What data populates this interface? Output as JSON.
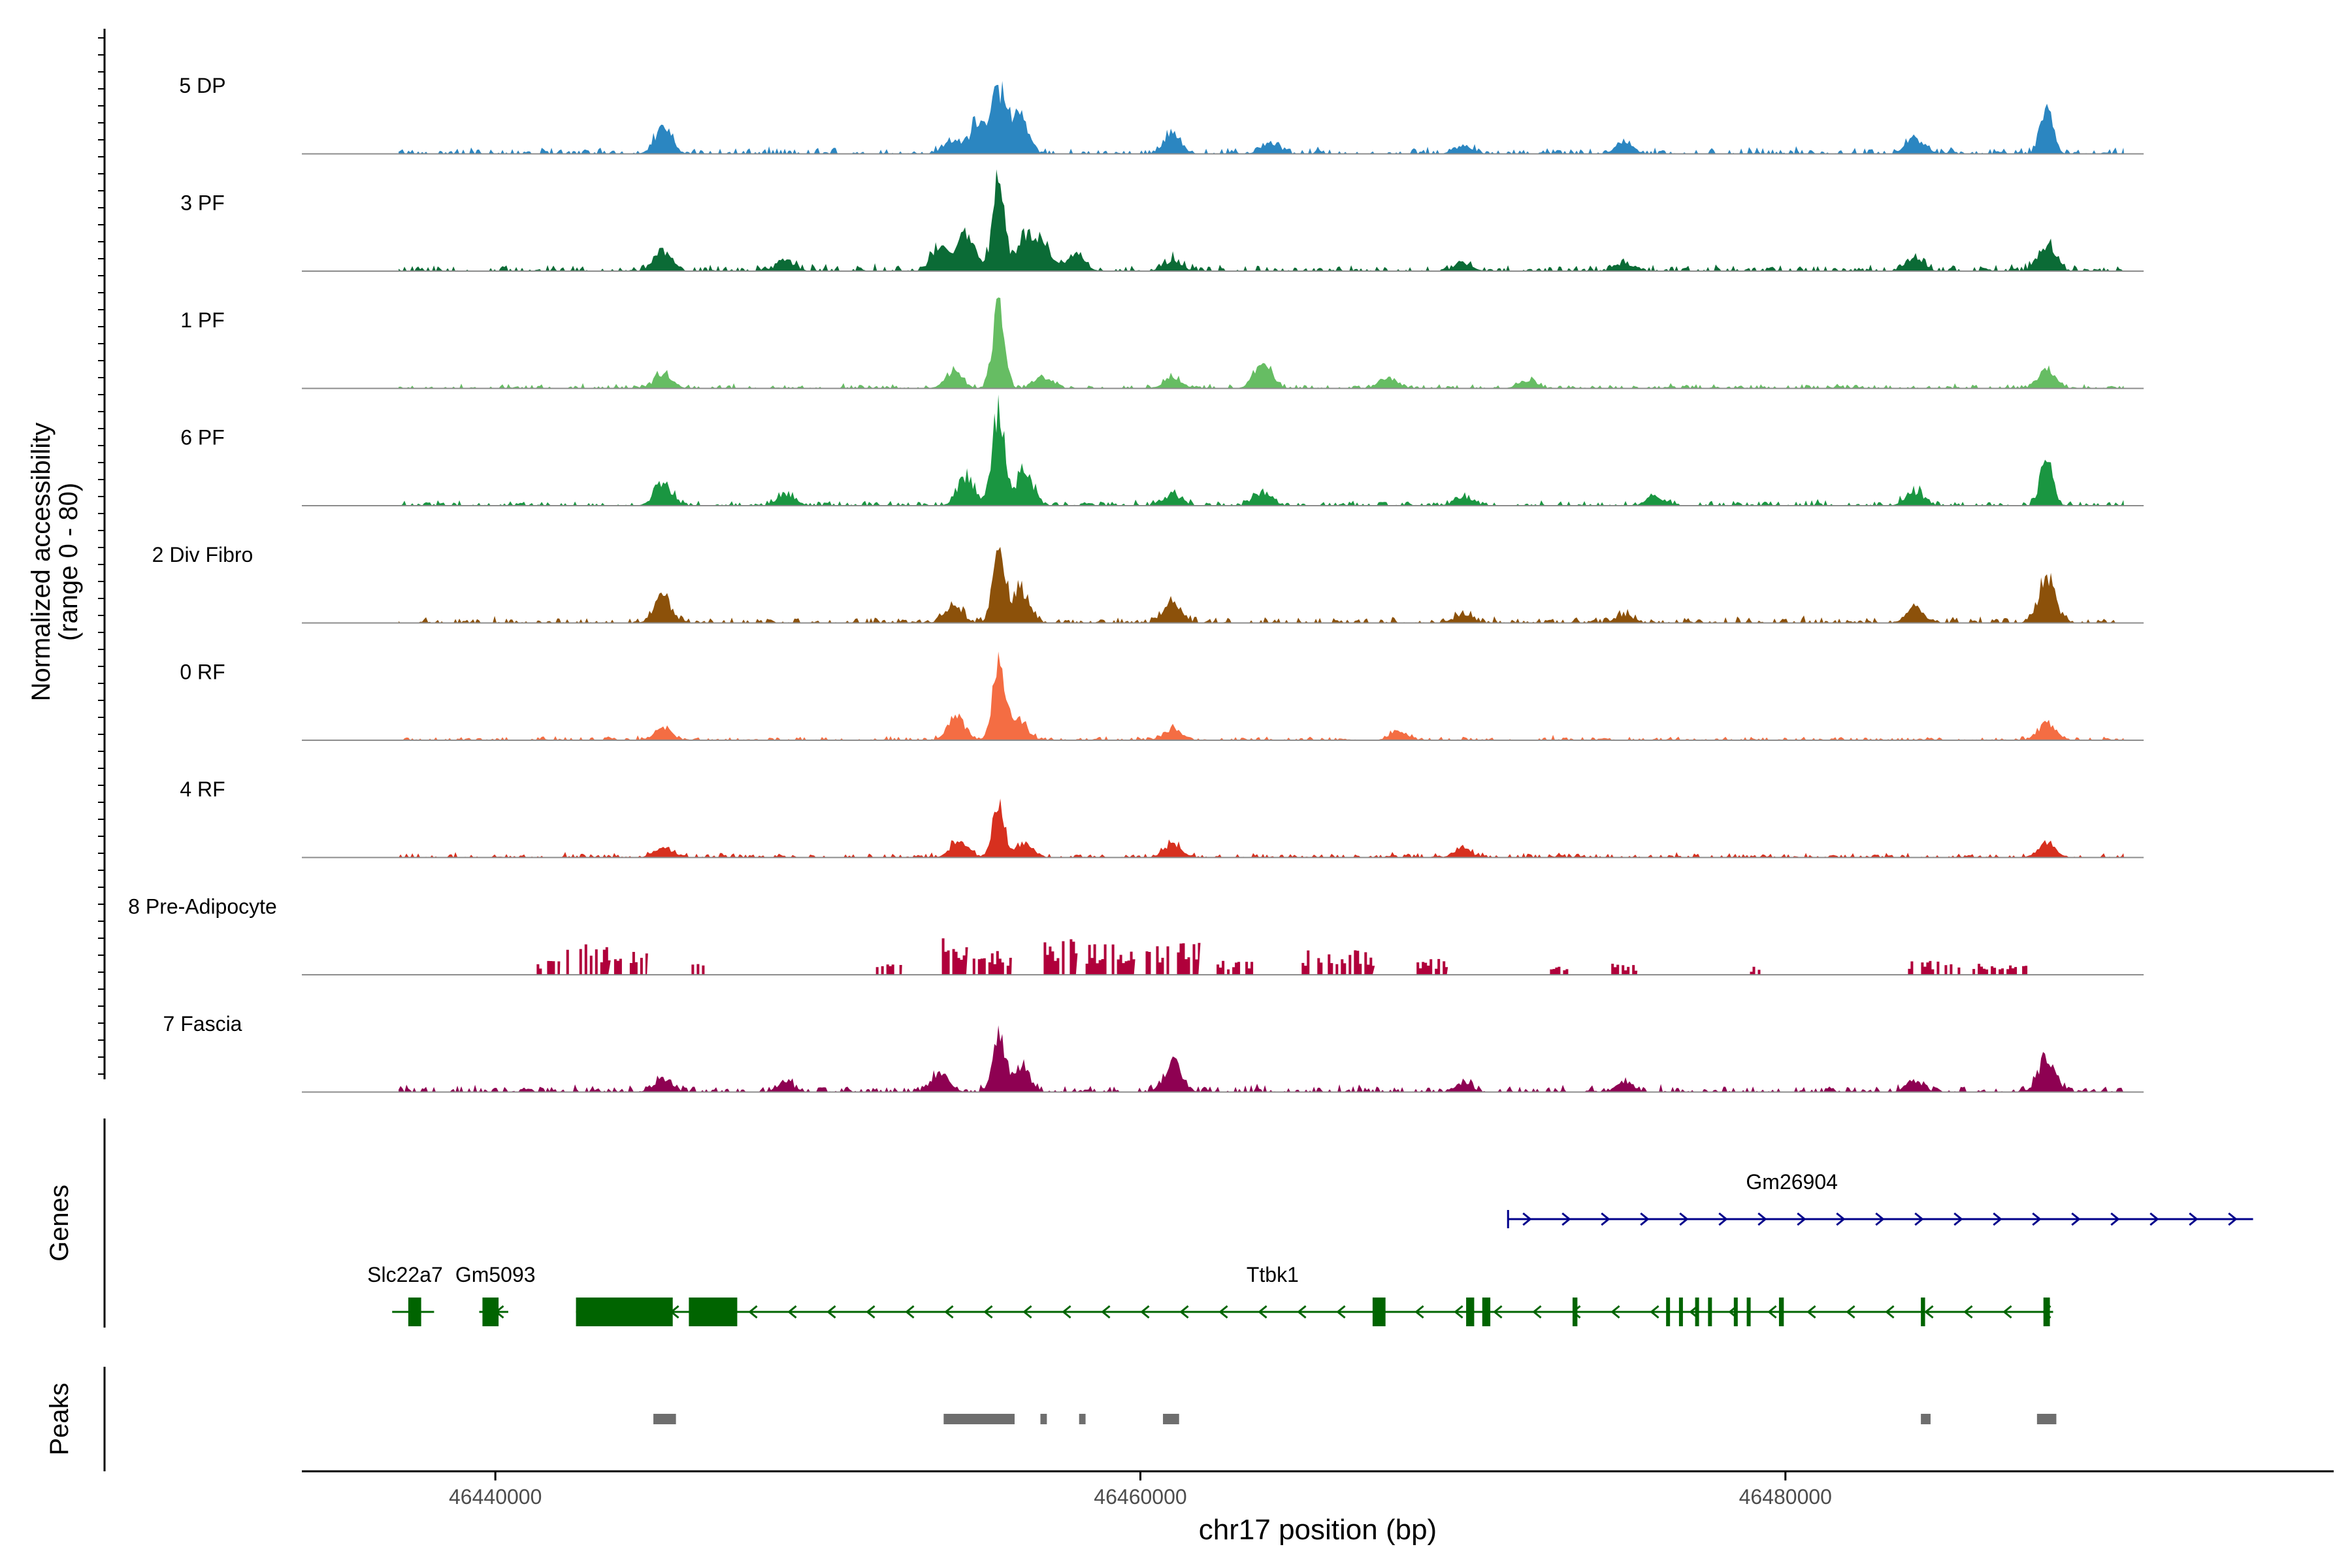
{
  "chart_data": {
    "type": "area",
    "title": "",
    "ylabel_line1": "Normalized accessibility",
    "ylabel_line2": "(range 0 - 80)",
    "xlabel": "chr17 position (bp)",
    "xlim": [
      46434000,
      46497000
    ],
    "ylim": [
      0,
      80
    ],
    "xticks": [
      {
        "value": 46440000,
        "label": "46440000"
      },
      {
        "value": 46460000,
        "label": "46460000"
      },
      {
        "value": 46480000,
        "label": "46480000"
      }
    ],
    "baseline": {
      "start": 46434000,
      "end": 46490500
    },
    "peak_centers": [
      46440600,
      46445200,
      46450600,
      46455500,
      46461000,
      46464800,
      46469500,
      46474600,
      46479000,
      46484000,
      46488100
    ],
    "series": [
      {
        "name": "5 DP",
        "color": "#2b86c1",
        "signal_start": 46437000,
        "signal_end": 46490500,
        "noise": 2.5,
        "peaks": [
          [
            46445200,
            9
          ],
          [
            46454200,
            5
          ],
          [
            46455000,
            11
          ],
          [
            46455600,
            22
          ],
          [
            46456200,
            15
          ],
          [
            46461000,
            7
          ],
          [
            46464000,
            4
          ],
          [
            46470000,
            3
          ],
          [
            46475000,
            4
          ],
          [
            46484000,
            5
          ],
          [
            46488100,
            18
          ]
        ]
      },
      {
        "name": "3 PF",
        "color": "#0b6b36",
        "signal_start": 46437000,
        "signal_end": 46490500,
        "noise": 2.5,
        "peaks": [
          [
            46445200,
            7
          ],
          [
            46449000,
            4
          ],
          [
            46453800,
            9
          ],
          [
            46454600,
            13
          ],
          [
            46455600,
            31
          ],
          [
            46456400,
            12
          ],
          [
            46457000,
            9
          ],
          [
            46458000,
            6
          ],
          [
            46461000,
            4
          ],
          [
            46470000,
            3
          ],
          [
            46475000,
            3
          ],
          [
            46484000,
            5
          ],
          [
            46488100,
            10
          ]
        ]
      },
      {
        "name": "1 PF",
        "color": "#66bd63",
        "signal_start": 46437000,
        "signal_end": 46490500,
        "noise": 1.8,
        "peaks": [
          [
            46445200,
            5
          ],
          [
            46454200,
            6
          ],
          [
            46455600,
            29
          ],
          [
            46457000,
            4
          ],
          [
            46461000,
            4
          ],
          [
            46463800,
            10
          ],
          [
            46467700,
            4
          ],
          [
            46472000,
            3
          ],
          [
            46488100,
            6
          ]
        ]
      },
      {
        "name": "6 PF",
        "color": "#1a9641",
        "signal_start": 46437000,
        "signal_end": 46490500,
        "noise": 2.2,
        "peaks": [
          [
            46445200,
            8
          ],
          [
            46449000,
            4
          ],
          [
            46454600,
            10
          ],
          [
            46455600,
            35
          ],
          [
            46456400,
            12
          ],
          [
            46461000,
            4
          ],
          [
            46463800,
            5
          ],
          [
            46470000,
            3
          ],
          [
            46476000,
            3
          ],
          [
            46484000,
            5
          ],
          [
            46488100,
            17
          ]
        ]
      },
      {
        "name": "2 Div Fibro",
        "color": "#8c510a",
        "signal_start": 46437000,
        "signal_end": 46490500,
        "noise": 2.4,
        "peaks": [
          [
            46445200,
            9
          ],
          [
            46454200,
            6
          ],
          [
            46455600,
            27
          ],
          [
            46456300,
            12
          ],
          [
            46461000,
            8
          ],
          [
            46470000,
            3
          ],
          [
            46475000,
            3
          ],
          [
            46484000,
            5
          ],
          [
            46488100,
            15
          ]
        ]
      },
      {
        "name": "0 RF",
        "color": "#f46d43",
        "signal_start": 46437000,
        "signal_end": 46490500,
        "noise": 1.6,
        "peaks": [
          [
            46445200,
            4
          ],
          [
            46454300,
            8
          ],
          [
            46455600,
            28
          ],
          [
            46456200,
            8
          ],
          [
            46461000,
            4
          ],
          [
            46468000,
            3
          ],
          [
            46488100,
            6
          ]
        ]
      },
      {
        "name": "4 RF",
        "color": "#d7301f",
        "signal_start": 46437000,
        "signal_end": 46490500,
        "noise": 1.9,
        "peaks": [
          [
            46445200,
            4
          ],
          [
            46454400,
            6
          ],
          [
            46455600,
            19
          ],
          [
            46456400,
            5
          ],
          [
            46461000,
            5
          ],
          [
            46470000,
            3
          ],
          [
            46488100,
            5
          ]
        ]
      },
      {
        "name": "8 Pre-Adipocyte",
        "color": "#b0003b",
        "sparse": true,
        "blocks": [
          [
            46441200,
            46442000,
            5
          ],
          [
            46442200,
            46443500,
            11
          ],
          [
            46443600,
            46444700,
            9
          ],
          [
            46446000,
            46446500,
            4
          ],
          [
            46451800,
            46452600,
            4
          ],
          [
            46453600,
            46454600,
            15
          ],
          [
            46454800,
            46456000,
            9
          ],
          [
            46457000,
            46458000,
            14
          ],
          [
            46458300,
            46459800,
            11
          ],
          [
            46460000,
            46461800,
            12
          ],
          [
            46462200,
            46463600,
            5
          ],
          [
            46465000,
            46467200,
            9
          ],
          [
            46468400,
            46469500,
            6
          ],
          [
            46472700,
            46473300,
            3
          ],
          [
            46474600,
            46475400,
            4
          ],
          [
            46478900,
            46479300,
            3
          ],
          [
            46483800,
            46485500,
            5
          ],
          [
            46485800,
            46487600,
            4
          ]
        ]
      },
      {
        "name": "7 Fascia",
        "color": "#8e0152",
        "signal_start": 46437000,
        "signal_end": 46490500,
        "noise": 2.8,
        "peaks": [
          [
            46445200,
            5
          ],
          [
            46449000,
            3
          ],
          [
            46453800,
            7
          ],
          [
            46455600,
            21
          ],
          [
            46456300,
            9
          ],
          [
            46461000,
            10
          ],
          [
            46470000,
            3
          ],
          [
            46475000,
            3
          ],
          [
            46484000,
            4
          ],
          [
            46488100,
            11
          ]
        ]
      }
    ],
    "genes_label": "Genes",
    "peaks_label": "Peaks",
    "genes": [
      {
        "name": "Gm26904",
        "strand": "+",
        "color": "#00008b",
        "row": 0,
        "start": 46471400,
        "end": 46494500,
        "label_pos": 46480200,
        "exons": []
      },
      {
        "name": "Slc22a7",
        "strand": "-",
        "color": "#006400",
        "row": 1,
        "start": 46436800,
        "end": 46438100,
        "label_pos": 46437200,
        "exons": [
          [
            46437300,
            46437700
          ]
        ]
      },
      {
        "name": "Gm5093",
        "strand": "-",
        "color": "#006400",
        "row": 1,
        "start": 46439500,
        "end": 46440400,
        "label_pos": 46440000,
        "exons": [
          [
            46439600,
            46440100
          ]
        ]
      },
      {
        "name": "Ttbk1",
        "strand": "-",
        "color": "#006400",
        "row": 1,
        "start": 46442500,
        "end": 46488300,
        "label_pos": 46464100,
        "exons": [
          [
            46442500,
            46445500
          ],
          [
            46446000,
            46447500
          ],
          [
            46467200,
            46467600
          ],
          [
            46470100,
            46470350
          ],
          [
            46470600,
            46470850
          ],
          [
            46473400,
            46473550
          ],
          [
            46476300,
            46476420
          ],
          [
            46476700,
            46476800
          ],
          [
            46477200,
            46477300
          ],
          [
            46477600,
            46477700
          ],
          [
            46478400,
            46478500
          ],
          [
            46478800,
            46478900
          ],
          [
            46479800,
            46479950
          ],
          [
            46484200,
            46484330
          ],
          [
            46488000,
            46488200
          ]
        ]
      }
    ],
    "peak_regions": [
      [
        46444900,
        46445600
      ],
      [
        46453900,
        46456100
      ],
      [
        46456900,
        46457100
      ],
      [
        46458100,
        46458300
      ],
      [
        46460700,
        46461200
      ],
      [
        46484200,
        46484500
      ],
      [
        46487800,
        46488400
      ]
    ]
  }
}
